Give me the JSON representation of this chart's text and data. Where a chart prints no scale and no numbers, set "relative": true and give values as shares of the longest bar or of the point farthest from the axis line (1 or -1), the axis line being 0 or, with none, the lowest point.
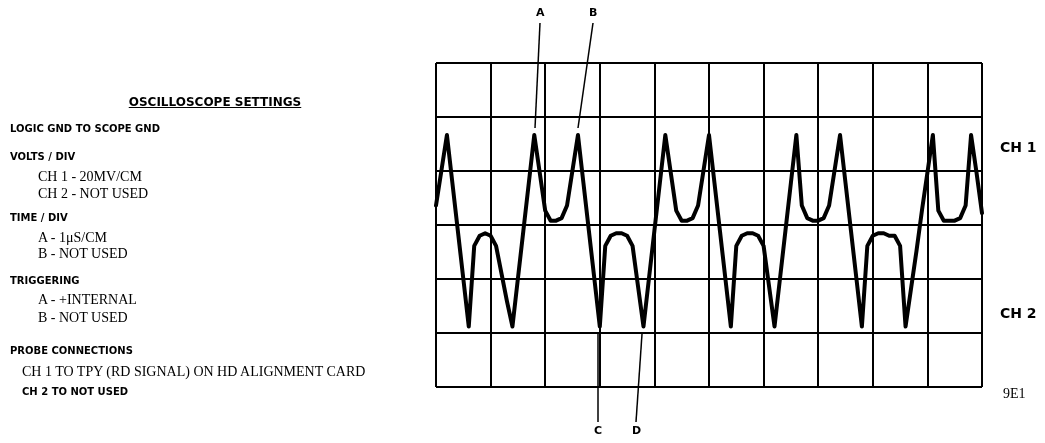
{
  "chart_data": {
    "type": "line",
    "title": "OSCILLOSCOPE SETTINGS",
    "relative": true,
    "categories": [
      null,
      null,
      null,
      null,
      null,
      null,
      null,
      null,
      null,
      null,
      null,
      null,
      null,
      null,
      null,
      null,
      null,
      null,
      null,
      null,
      null,
      null,
      null,
      null,
      null,
      null,
      null,
      null,
      null,
      null,
      null,
      null,
      null,
      null,
      null,
      null,
      null,
      null,
      null,
      null,
      null,
      null,
      null,
      null,
      null,
      null,
      null,
      null,
      null,
      null,
      null,
      null,
      null,
      null,
      null,
      null,
      null,
      null,
      null,
      null,
      null,
      null,
      null,
      null,
      null,
      null,
      null,
      null,
      null,
      null,
      null,
      null,
      null,
      null,
      null,
      null,
      null,
      null,
      null,
      null,
      null,
      null,
      null,
      null,
      null,
      null,
      null,
      null,
      null,
      null,
      null,
      null,
      null,
      null,
      null,
      null,
      null,
      null,
      null,
      null,
      null
    ],
    "series": [
      {
        "color": "#000000",
        "values": [
          0.72,
          0.86,
          1,
          0.81,
          0.62,
          0.43,
          0.24,
          0.56,
          0.6,
          0.61,
          0.6,
          0.56,
          0.45,
          0.34,
          0.24,
          0.43,
          0.62,
          0.81,
          1,
          0.85,
          0.7,
          0.66,
          0.66,
          0.67,
          0.72,
          0.86,
          1,
          0.81,
          0.62,
          0.43,
          0.24,
          0.56,
          0.6,
          0.61,
          0.61,
          0.6,
          0.56,
          0.4,
          0.24,
          0.43,
          0.62,
          0.81,
          1,
          0.85,
          0.7,
          0.66,
          0.66,
          0.67,
          0.72,
          0.86,
          1,
          0.81,
          0.62,
          0.43,
          0.24,
          0.56,
          0.6,
          0.61,
          0.61,
          0.6,
          0.56,
          0.4,
          0.24,
          0.43,
          0.62,
          0.81,
          1,
          0.72,
          0.67,
          0.66,
          0.66,
          0.67,
          0.72,
          0.86,
          1,
          0.81,
          0.62,
          0.43,
          0.24,
          0.56,
          0.6,
          0.61,
          0.61,
          0.6,
          0.6,
          0.56,
          0.24,
          0.39,
          0.54,
          0.7,
          0.85,
          1,
          0.7,
          0.66,
          0.66,
          0.66,
          0.67,
          0.72,
          1,
          0.85,
          0.69
        ]
      }
    ],
    "grid": true,
    "marker": "none",
    "line_style": "solid",
    "annotations": [
      "LOGIC GND TO SCOPE GND",
      "VOLTS / DIV",
      "CH 1 - 20MV/CM",
      "CH 2 - NOT USED",
      "TIME / DIV",
      "A - 1μS/CM",
      "B - NOT USED",
      "TRIGGERING",
      "A - +INTERNAL",
      "B -  NOT USED",
      "PROBE CONNECTIONS",
      "CH 1 TO TPY (RD SIGNAL) ON HD ALIGNMENT CARD",
      "CH 2 TO NOT USED",
      "CH 1",
      "CH 2",
      "9E1",
      "A",
      "B",
      "C",
      "D"
    ]
  }
}
